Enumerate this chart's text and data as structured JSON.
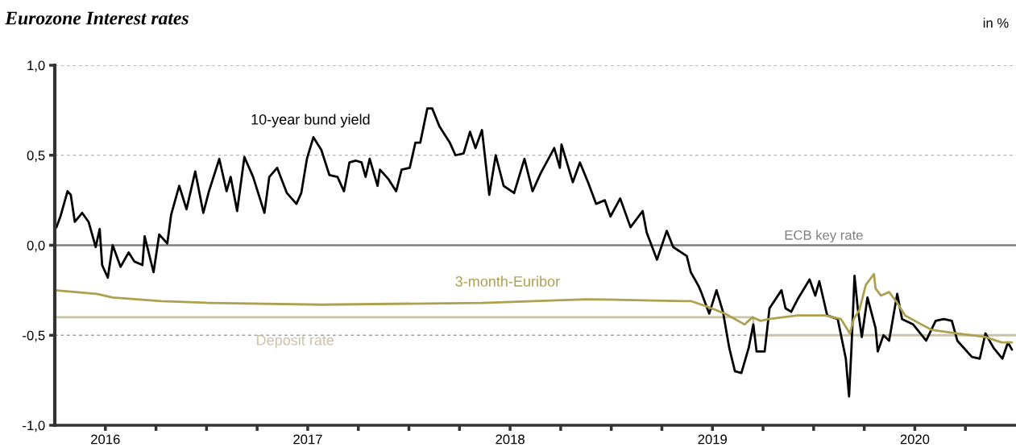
{
  "chart_data": {
    "type": "line",
    "title": "Eurozone Interest rates",
    "annotations": [
      "in %"
    ],
    "xlim": [
      2016.25,
      2021.0
    ],
    "xticks": [
      {
        "value": 2016.5,
        "label": null
      },
      {
        "value": 2016.75,
        "label": null
      },
      {
        "value": 2017.0,
        "label": null
      },
      {
        "value": 2017.25,
        "label": null
      },
      {
        "value": 2017.5,
        "label": null
      },
      {
        "value": 2017.75,
        "label": null
      },
      {
        "value": 2018.0,
        "label": null
      },
      {
        "value": 2018.25,
        "label": null
      },
      {
        "value": 2018.5,
        "label": null
      },
      {
        "value": 2018.75,
        "label": null
      },
      {
        "value": 2019.0,
        "label": null
      },
      {
        "value": 2019.25,
        "label": null
      },
      {
        "value": 2019.5,
        "label": null
      },
      {
        "value": 2019.75,
        "label": null
      },
      {
        "value": 2020.0,
        "label": null
      },
      {
        "value": 2020.25,
        "label": null
      },
      {
        "value": 2020.5,
        "label": null
      },
      {
        "value": 2020.75,
        "label": null
      },
      {
        "value": 2016.5,
        "label": "2016"
      },
      {
        "value": 2017.5,
        "label": "2017"
      },
      {
        "value": 2018.5,
        "label": "2018"
      },
      {
        "value": 2019.5,
        "label": "2019"
      },
      {
        "value": 2020.5,
        "label": "2020"
      }
    ],
    "ylim": [
      -1.0,
      1.0
    ],
    "yticks": [
      {
        "value": -1.0,
        "label": "-1,0"
      },
      {
        "value": -0.5,
        "label": "-0,5"
      },
      {
        "value": 0.0,
        "label": "0,0"
      },
      {
        "value": 0.5,
        "label": "0,5"
      },
      {
        "value": 1.0,
        "label": "1,0"
      }
    ],
    "grid": "y",
    "legend": false,
    "ref_lines": [
      {
        "axis": "y",
        "value": 0,
        "label": "ECB key rate",
        "color": "#7f7f7f"
      }
    ],
    "series": [
      {
        "name": "10-year bund yield",
        "color": "#000000",
        "x": [
          2016.258,
          2016.278,
          2016.313,
          2016.329,
          2016.349,
          2016.385,
          2016.417,
          2016.452,
          2016.472,
          2016.484,
          2016.512,
          2016.536,
          2016.575,
          2016.615,
          2016.643,
          2016.683,
          2016.694,
          2016.738,
          2016.766,
          2016.806,
          2016.825,
          2016.865,
          2016.901,
          2016.944,
          2016.984,
          2017.012,
          2017.063,
          2017.099,
          2017.119,
          2017.151,
          2017.187,
          2017.23,
          2017.286,
          2017.31,
          2017.349,
          2017.397,
          2017.444,
          2017.468,
          2017.496,
          2017.528,
          2017.567,
          2017.607,
          2017.647,
          2017.679,
          2017.706,
          2017.738,
          2017.766,
          2017.786,
          2017.806,
          2017.845,
          2017.857,
          2017.897,
          2017.937,
          2017.964,
          2018.004,
          2018.032,
          2018.056,
          2018.091,
          2018.115,
          2018.151,
          2018.202,
          2018.23,
          2018.27,
          2018.302,
          2018.329,
          2018.361,
          2018.397,
          2018.429,
          2018.468,
          2018.52,
          2018.571,
          2018.611,
          2018.651,
          2018.718,
          2018.746,
          2018.754,
          2018.81,
          2018.845,
          2018.885,
          2018.925,
          2018.968,
          2018.996,
          2019.044,
          2019.095,
          2019.155,
          2019.175,
          2019.226,
          2019.274,
          2019.306,
          2019.373,
          2019.393,
          2019.433,
          2019.444,
          2019.484,
          2019.52,
          2019.552,
          2019.583,
          2019.611,
          2019.643,
          2019.679,
          2019.702,
          2019.718,
          2019.758,
          2019.782,
          2019.841,
          2019.861,
          2019.889,
          2019.921,
          2019.98,
          2020.008,
          2020.028,
          2020.067,
          2020.119,
          2020.159,
          2020.175,
          2020.187,
          2020.202,
          2020.218,
          2020.238,
          2020.266,
          2020.306,
          2020.317,
          2020.345,
          2020.373,
          2020.413,
          2020.437,
          2020.492,
          2020.556,
          2020.603,
          2020.643,
          2020.683,
          2020.71,
          2020.782,
          2020.821,
          2020.849,
          2020.889,
          2020.933,
          2020.96,
          2020.98
        ],
        "values": [
          0.1,
          0.16,
          0.3,
          0.28,
          0.13,
          0.18,
          0.13,
          -0.01,
          0.09,
          -0.11,
          -0.18,
          0.0,
          -0.12,
          -0.04,
          -0.09,
          -0.11,
          0.05,
          -0.15,
          0.06,
          0.01,
          0.17,
          0.33,
          0.2,
          0.41,
          0.18,
          0.3,
          0.48,
          0.3,
          0.38,
          0.19,
          0.49,
          0.38,
          0.18,
          0.38,
          0.43,
          0.29,
          0.23,
          0.29,
          0.48,
          0.6,
          0.53,
          0.39,
          0.38,
          0.3,
          0.46,
          0.47,
          0.46,
          0.38,
          0.48,
          0.33,
          0.42,
          0.37,
          0.3,
          0.42,
          0.43,
          0.57,
          0.57,
          0.76,
          0.76,
          0.66,
          0.57,
          0.5,
          0.51,
          0.63,
          0.54,
          0.64,
          0.28,
          0.5,
          0.33,
          0.29,
          0.48,
          0.3,
          0.4,
          0.54,
          0.43,
          0.56,
          0.35,
          0.46,
          0.35,
          0.23,
          0.25,
          0.16,
          0.26,
          0.1,
          0.19,
          0.07,
          -0.08,
          0.08,
          -0.01,
          -0.06,
          -0.15,
          -0.23,
          -0.26,
          -0.38,
          -0.25,
          -0.37,
          -0.57,
          -0.7,
          -0.71,
          -0.57,
          -0.44,
          -0.59,
          -0.59,
          -0.35,
          -0.25,
          -0.35,
          -0.37,
          -0.3,
          -0.19,
          -0.28,
          -0.2,
          -0.39,
          -0.41,
          -0.63,
          -0.84,
          -0.57,
          -0.17,
          -0.35,
          -0.51,
          -0.29,
          -0.46,
          -0.59,
          -0.5,
          -0.53,
          -0.27,
          -0.41,
          -0.44,
          -0.53,
          -0.42,
          -0.41,
          -0.42,
          -0.53,
          -0.62,
          -0.63,
          -0.49,
          -0.57,
          -0.63,
          -0.54,
          -0.58
        ]
      },
      {
        "name": "3-month-Euribor",
        "color": "#ada04f",
        "x": [
          2016.25,
          2016.456,
          2016.536,
          2016.774,
          2017.012,
          2017.567,
          2018.361,
          2018.877,
          2019.353,
          2019.393,
          2019.472,
          2019.563,
          2019.659,
          2019.698,
          2019.738,
          2019.778,
          2019.921,
          2020.056,
          2020.135,
          2020.179,
          2020.198,
          2020.226,
          2020.258,
          2020.298,
          2020.306,
          2020.333,
          2020.373,
          2020.413,
          2020.452,
          2020.516,
          2020.583,
          2020.714,
          2020.849,
          2020.929,
          2020.98
        ],
        "values": [
          -0.25,
          -0.27,
          -0.29,
          -0.31,
          -0.32,
          -0.33,
          -0.32,
          -0.3,
          -0.31,
          -0.31,
          -0.34,
          -0.38,
          -0.44,
          -0.4,
          -0.42,
          -0.41,
          -0.39,
          -0.39,
          -0.41,
          -0.49,
          -0.41,
          -0.36,
          -0.22,
          -0.16,
          -0.24,
          -0.28,
          -0.26,
          -0.32,
          -0.39,
          -0.43,
          -0.47,
          -0.49,
          -0.51,
          -0.54,
          -0.54
        ]
      },
      {
        "name": "Deposit rate",
        "type": "step",
        "color": "#cbc3a6",
        "x": [
          2016.25,
          2019.702,
          2021.0
        ],
        "values": [
          -0.4,
          -0.5,
          -0.5
        ]
      }
    ]
  }
}
